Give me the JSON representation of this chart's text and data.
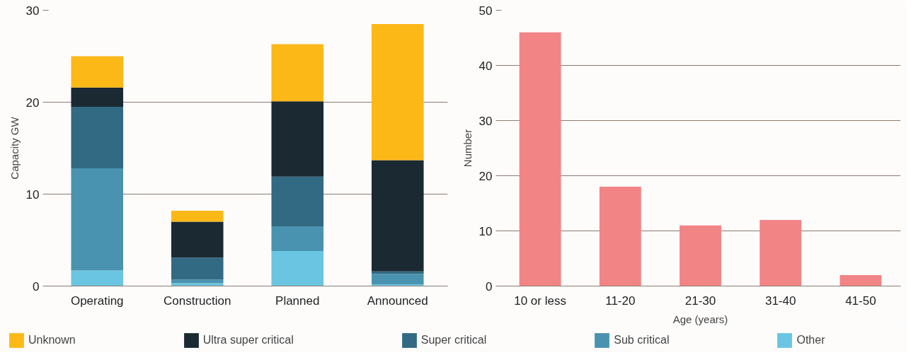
{
  "chart_data": [
    {
      "type": "bar",
      "stacked": true,
      "ylabel": "Capacity GW",
      "categories": [
        "Operating",
        "Construction",
        "Planned",
        "Announced"
      ],
      "ylim": [
        0,
        30
      ],
      "yticks": [
        0,
        10,
        20,
        30
      ],
      "grid": "y",
      "legend": "bottom",
      "series": [
        {
          "name": "Other",
          "color": "#6ac5e2",
          "values": [
            1.7,
            0.3,
            3.8,
            0.2
          ]
        },
        {
          "name": "Sub critical",
          "color": "#4a93b0",
          "values": [
            11.1,
            0.4,
            2.7,
            1.1
          ]
        },
        {
          "name": "Super critical",
          "color": "#316a82",
          "values": [
            6.7,
            2.4,
            5.4,
            0.3
          ]
        },
        {
          "name": "Ultra super critical",
          "color": "#1a2932",
          "values": [
            2.1,
            3.9,
            8.2,
            12.1
          ]
        },
        {
          "name": "Unknown",
          "color": "#fcb817",
          "values": [
            3.4,
            1.2,
            6.2,
            14.8
          ]
        }
      ]
    },
    {
      "type": "bar",
      "xlabel": "Age (years)",
      "ylabel": "Number",
      "categories": [
        "10 or less",
        "11-20",
        "21-30",
        "31-40",
        "41-50"
      ],
      "ylim": [
        0,
        50
      ],
      "yticks": [
        0,
        10,
        20,
        30,
        40,
        50
      ],
      "grid": "y",
      "series": [
        {
          "color": "#f28486",
          "values": [
            46,
            18,
            11,
            12,
            2
          ]
        }
      ]
    }
  ]
}
